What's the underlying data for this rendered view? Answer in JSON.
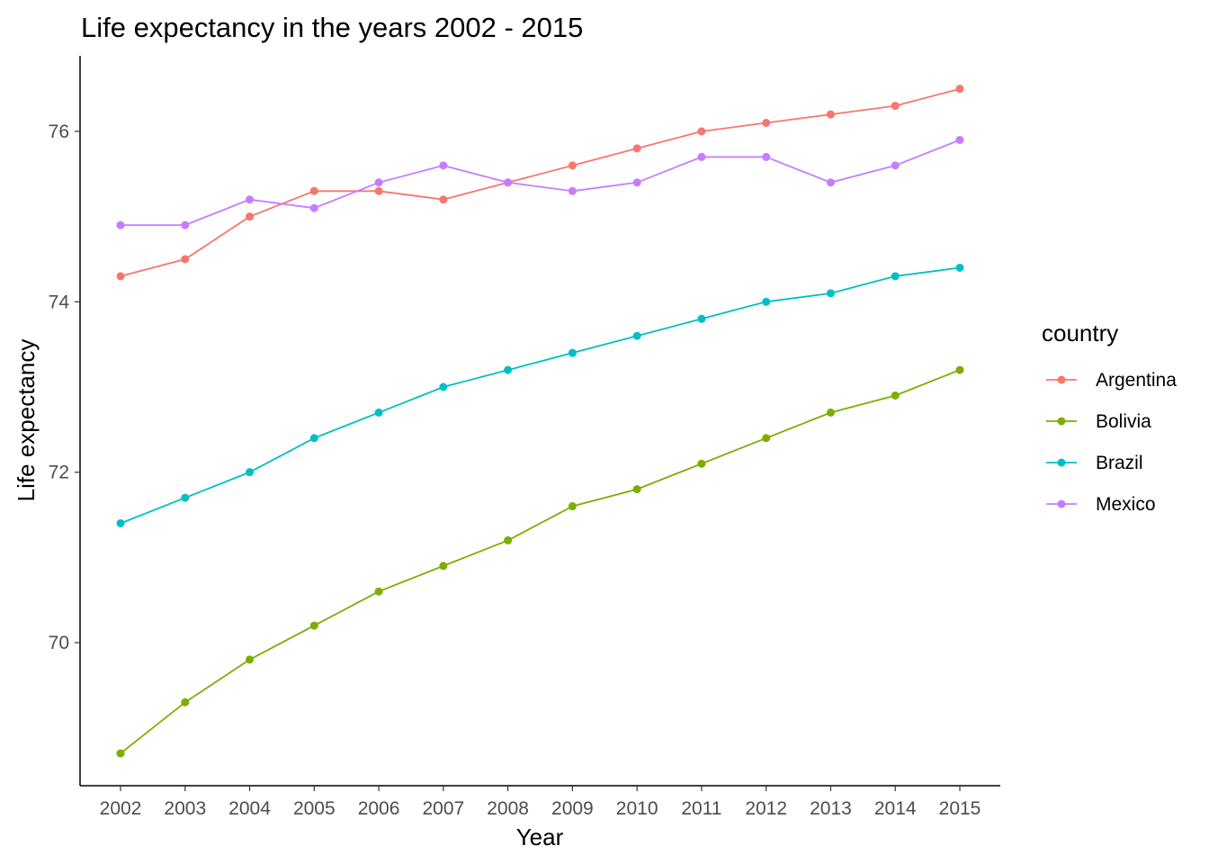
{
  "chart_data": {
    "type": "line",
    "title": "Life expectancy in the years 2002 - 2015",
    "xlabel": "Year",
    "ylabel": "Life expectancy",
    "x": [
      2002,
      2003,
      2004,
      2005,
      2006,
      2007,
      2008,
      2009,
      2010,
      2011,
      2012,
      2013,
      2014,
      2015
    ],
    "x_tick_labels": [
      "2002",
      "2003",
      "2004",
      "2005",
      "2006",
      "2007",
      "2008",
      "2009",
      "2010",
      "2011",
      "2012",
      "2013",
      "2014",
      "2015"
    ],
    "y_ticks": [
      70,
      72,
      74,
      76
    ],
    "y_tick_labels": [
      "70",
      "72",
      "74",
      "76"
    ],
    "ylim": [
      68.4,
      76.8
    ],
    "grid": false,
    "markers": true,
    "legend": {
      "title": "country",
      "placement": "right"
    },
    "series": [
      {
        "name": "Argentina",
        "color": "#F8766D",
        "values": [
          74.3,
          74.5,
          75.0,
          75.3,
          75.3,
          75.2,
          75.4,
          75.6,
          75.8,
          76.0,
          76.1,
          76.2,
          76.3,
          76.5
        ]
      },
      {
        "name": "Bolivia",
        "color": "#7CAE00",
        "values": [
          68.7,
          69.3,
          69.8,
          70.2,
          70.6,
          70.9,
          71.2,
          71.6,
          71.8,
          72.1,
          72.4,
          72.7,
          72.9,
          73.2
        ]
      },
      {
        "name": "Brazil",
        "color": "#00BFC4",
        "values": [
          71.4,
          71.7,
          72.0,
          72.4,
          72.7,
          73.0,
          73.2,
          73.4,
          73.6,
          73.8,
          74.0,
          74.1,
          74.3,
          74.4
        ]
      },
      {
        "name": "Mexico",
        "color": "#C77CFF",
        "values": [
          74.9,
          74.9,
          75.2,
          75.1,
          75.4,
          75.6,
          75.4,
          75.3,
          75.4,
          75.7,
          75.7,
          75.4,
          75.6,
          75.9
        ]
      }
    ]
  }
}
